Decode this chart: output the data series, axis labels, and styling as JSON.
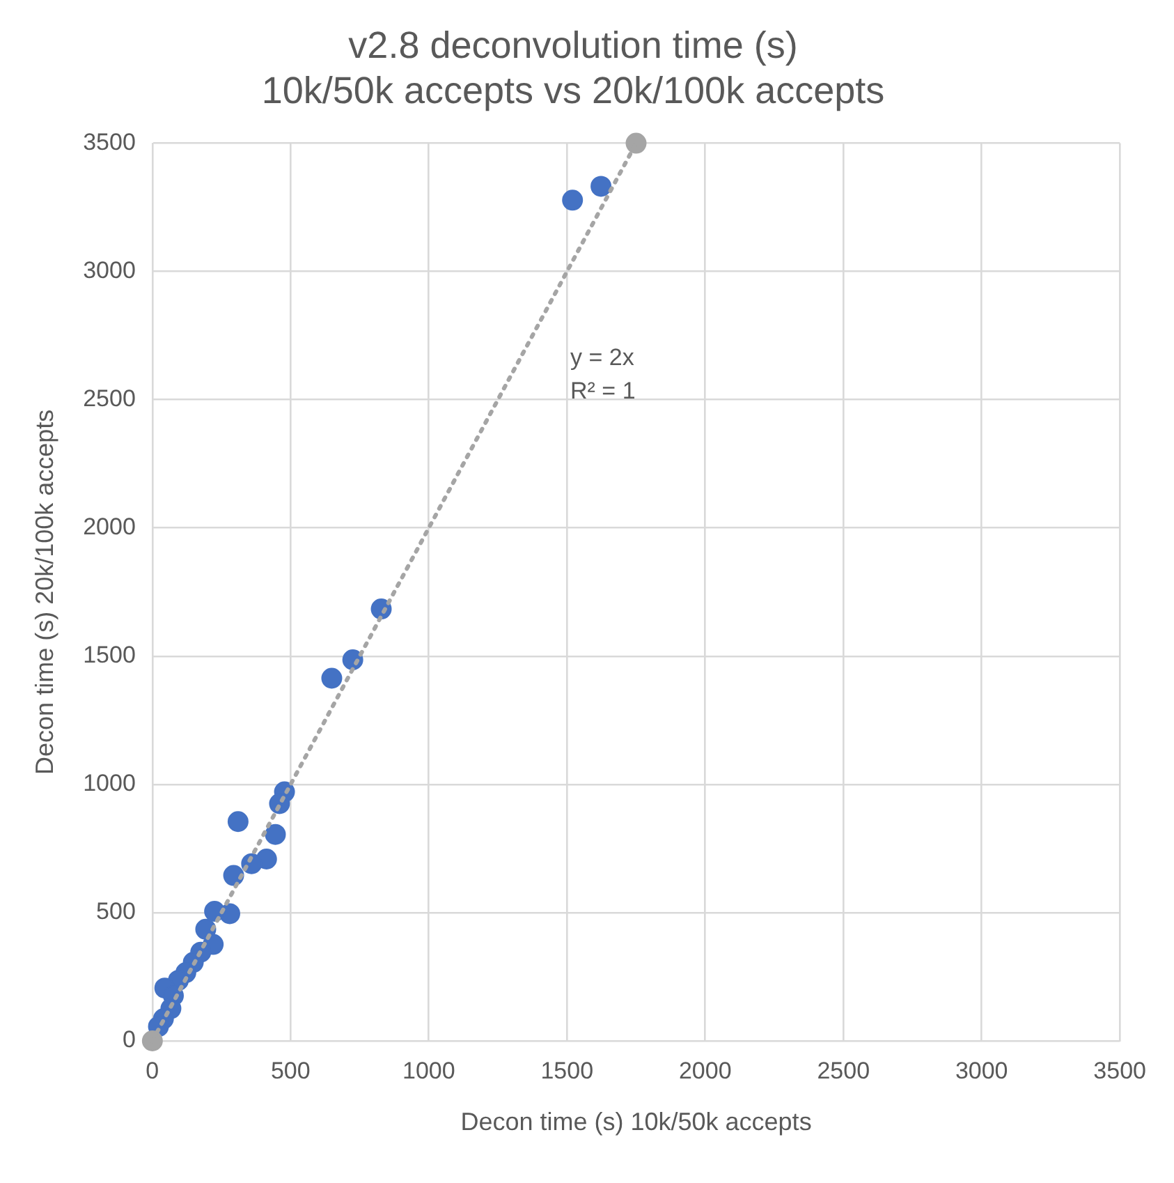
{
  "chart_data": {
    "type": "scatter",
    "title": "v2.8 deconvolution time (s)\n10k/50k accepts vs 20k/100k accepts",
    "xlabel": "Decon time (s) 10k/50k accepts",
    "ylabel": "Decon time (s) 20k/100k accepts",
    "xlim": [
      0,
      3500
    ],
    "ylim": [
      0,
      3500
    ],
    "xticks": [
      0,
      500,
      1000,
      1500,
      2000,
      2500,
      3000,
      3500
    ],
    "yticks": [
      0,
      500,
      1000,
      1500,
      2000,
      2500,
      3000,
      3500
    ],
    "grid": true,
    "legend": false,
    "marker": "circle",
    "series": [
      {
        "type": "scatter",
        "color": "#4472c4",
        "x": [
          1520,
          1623,
          828,
          725,
          649,
          478,
          460,
          310,
          445,
          413,
          359,
          294,
          280,
          225,
          193,
          220,
          175,
          148,
          121,
          94,
          45,
          76,
          67,
          40,
          22
        ],
        "values": [
          3278,
          3332,
          1684,
          1486,
          1414,
          971,
          925,
          855,
          805,
          709,
          691,
          645,
          496,
          505,
          435,
          376,
          346,
          306,
          266,
          236,
          206,
          176,
          126,
          86,
          56
        ]
      },
      {
        "type": "scatter",
        "color": "#a5a5a5",
        "x": [
          0,
          1750
        ],
        "values": [
          0,
          3500
        ]
      },
      {
        "type": "line",
        "color": "#a5a5a5",
        "x": [
          0,
          1750
        ],
        "values": [
          0,
          3500
        ],
        "line_style": "dotted",
        "marker": "none"
      }
    ],
    "annotations": [
      "y = 2x",
      "R² = 1"
    ]
  }
}
